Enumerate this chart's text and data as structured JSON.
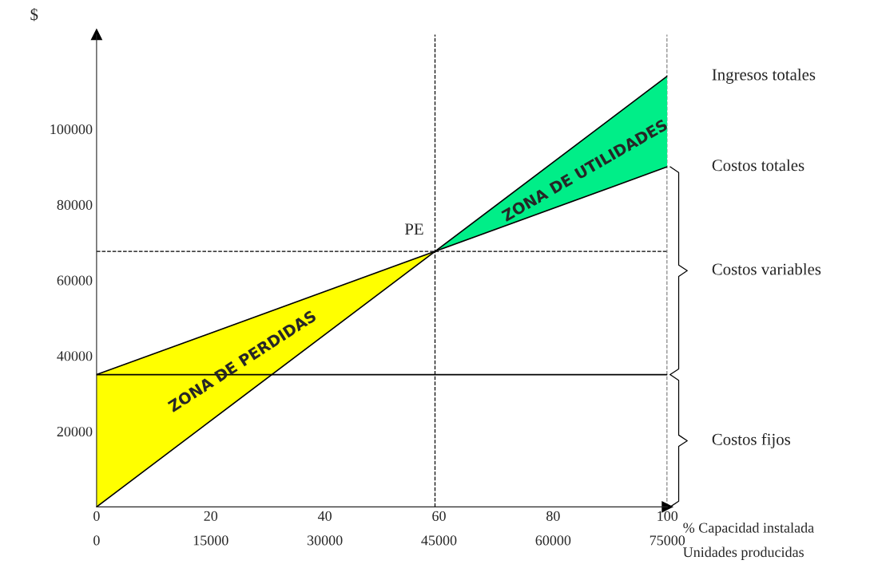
{
  "chart_data": {
    "type": "line",
    "ylabel": "$",
    "xlabel": "% Capacidad instalada",
    "x2label": "Unidades producidas",
    "xlim": [
      0,
      100
    ],
    "xticks": [
      0,
      20,
      40,
      60,
      80,
      100
    ],
    "x2lim": [
      0,
      75000
    ],
    "x2ticks": [
      0,
      15000,
      30000,
      45000,
      60000,
      75000
    ],
    "ylim": [
      0,
      125000
    ],
    "yticks": [
      20000,
      40000,
      60000,
      80000,
      100000
    ],
    "grid": false,
    "series": [
      {
        "type": "area",
        "color": "#ffff00",
        "x": [
          0,
          59.3
        ],
        "values": [
          35000,
          67600
        ]
      },
      {
        "type": "area",
        "color": "#00ee88",
        "x": [
          59.3,
          100
        ],
        "values": [
          67600,
          114000
        ]
      },
      {
        "color": "#000000",
        "x": [
          0,
          100
        ],
        "values": [
          0,
          114000
        ]
      },
      {
        "color": "#000000",
        "x": [
          0,
          100
        ],
        "values": [
          35000,
          90000
        ]
      },
      {
        "color": "#000000",
        "x": [
          0,
          100
        ],
        "values": [
          35000,
          35000
        ]
      }
    ],
    "ref_lines": [
      {
        "axis": "x",
        "value": 59.3,
        "line_style": "dashed",
        "color": "#000000"
      },
      {
        "axis": "y",
        "value": 67600,
        "line_style": "dashed",
        "color": "#000000"
      },
      {
        "axis": "x",
        "value": 100,
        "line_style": "dashed",
        "color": "#000000"
      }
    ],
    "annotations": [
      "PE",
      "ZONA DE PERDIDAS",
      "ZONA DE UTILIDADES",
      "Ingresos totales",
      "Costos totales",
      "Costos variables",
      "Costos fijos"
    ]
  }
}
